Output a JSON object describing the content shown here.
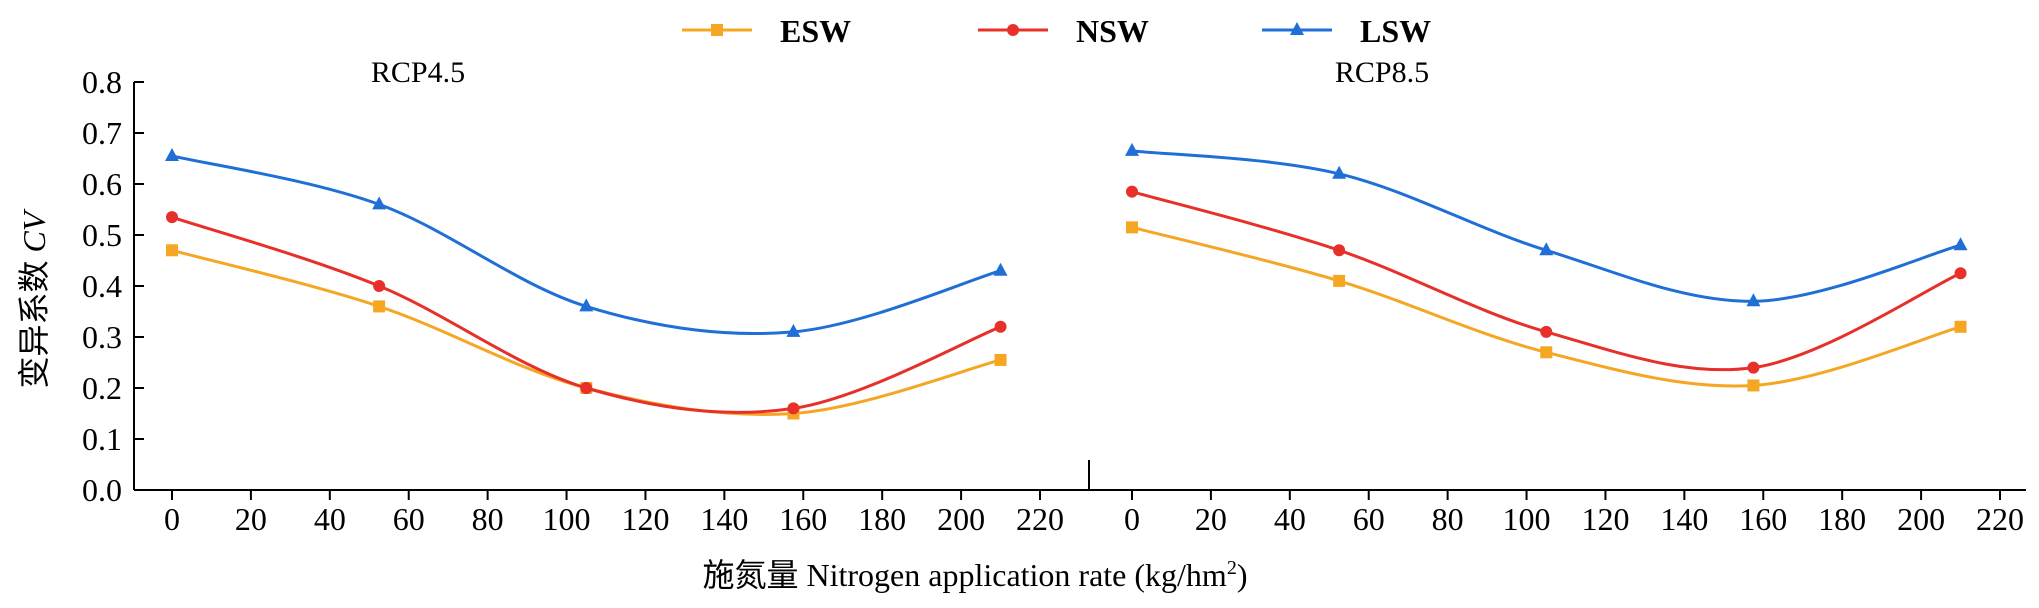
{
  "chart_data": {
    "type": "line",
    "ylabel_prefix": "变异系数 ",
    "ylabel_symbol": "CV",
    "xlabel_prefix": "施氮量 Nitrogen application rate (kg/hm",
    "xlabel_sup": "2",
    "xlabel_suffix": ")",
    "ylim": [
      0,
      0.8
    ],
    "yticks": [
      "0.0",
      "0.1",
      "0.2",
      "0.3",
      "0.4",
      "0.5",
      "0.6",
      "0.7",
      "0.8"
    ],
    "xlim": [
      0,
      220
    ],
    "xticks": [
      "0",
      "20",
      "40",
      "60",
      "80",
      "100",
      "120",
      "140",
      "160",
      "180",
      "200",
      "220"
    ],
    "grid": false,
    "legend_position": "top-center",
    "legend": [
      {
        "name": "ESW",
        "color": "#F5A623",
        "marker": "square"
      },
      {
        "name": "NSW",
        "color": "#E8302A",
        "marker": "circle"
      },
      {
        "name": "LSW",
        "color": "#1F6FD6",
        "marker": "triangle"
      }
    ],
    "panels": [
      {
        "title": "RCP4.5",
        "x": [
          0,
          52.5,
          105,
          157.5,
          210
        ],
        "series": [
          {
            "name": "ESW",
            "values": [
              0.47,
              0.36,
              0.2,
              0.15,
              0.255
            ]
          },
          {
            "name": "NSW",
            "values": [
              0.535,
              0.4,
              0.2,
              0.16,
              0.32
            ]
          },
          {
            "name": "LSW",
            "values": [
              0.655,
              0.56,
              0.36,
              0.31,
              0.43
            ]
          }
        ]
      },
      {
        "title": "RCP8.5",
        "x": [
          0,
          52.5,
          105,
          157.5,
          210
        ],
        "series": [
          {
            "name": "ESW",
            "values": [
              0.515,
              0.41,
              0.27,
              0.205,
              0.32
            ]
          },
          {
            "name": "NSW",
            "values": [
              0.585,
              0.47,
              0.31,
              0.24,
              0.425
            ]
          },
          {
            "name": "LSW",
            "values": [
              0.665,
              0.62,
              0.47,
              0.37,
              0.48
            ]
          }
        ]
      }
    ]
  }
}
